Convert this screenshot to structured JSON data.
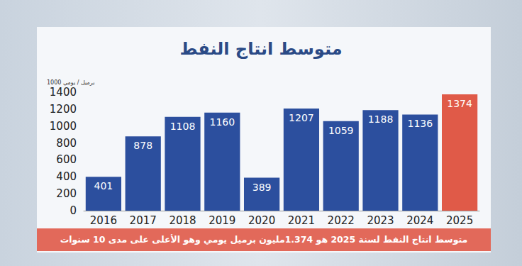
{
  "chart_data": {
    "type": "bar",
    "title": "متوسط انتاج النفط",
    "y_label": "1000 برميل / يومي",
    "categories": [
      "2016",
      "2017",
      "2018",
      "2019",
      "2020",
      "2021",
      "2022",
      "2023",
      "2024",
      "2025"
    ],
    "values": [
      401,
      878,
      1108,
      1160,
      389,
      1207,
      1059,
      1188,
      1136,
      1374
    ],
    "colors": [
      "#2c4f9e",
      "#2c4f9e",
      "#2c4f9e",
      "#2c4f9e",
      "#2c4f9e",
      "#2c4f9e",
      "#2c4f9e",
      "#2c4f9e",
      "#2c4f9e",
      "#e05a48"
    ],
    "ylim": [
      0,
      1400
    ],
    "yticks": [
      0,
      200,
      400,
      600,
      800,
      1000,
      1200,
      1400
    ],
    "grid": false,
    "data_labels": true,
    "annotation": "متوسط انتاج النفط لسنة 2025 هو 1.374مليون برميل يومي وهو الأعلى على مدى 10 سنوات"
  }
}
